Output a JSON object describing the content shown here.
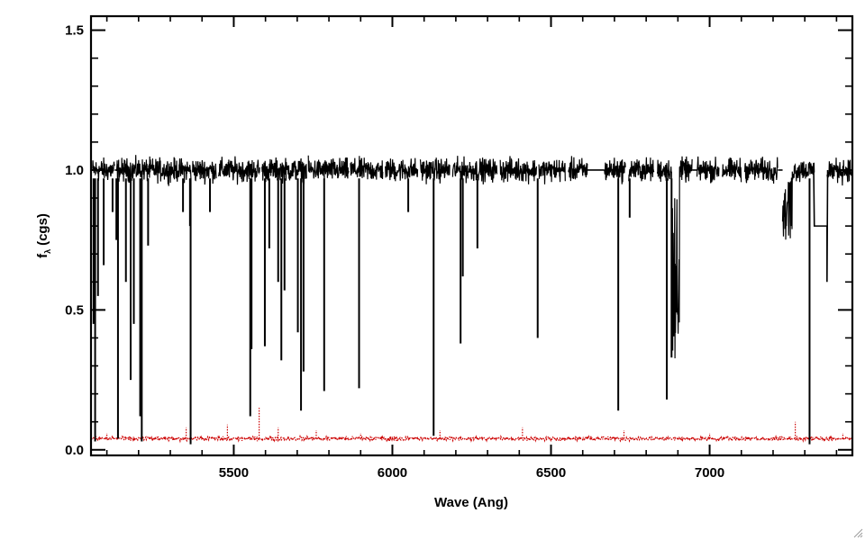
{
  "chart_data": {
    "type": "line",
    "xlabel": "Wave (Ang)",
    "ylabel_main": "f",
    "ylabel_sub": "λ",
    "ylabel_unit": "(cgs)",
    "xlim": [
      5050,
      7450
    ],
    "ylim": [
      -0.02,
      1.55
    ],
    "xticks": [
      5500,
      6000,
      6500,
      7000
    ],
    "xtick_labels": [
      "5500",
      "6000",
      "6500",
      "7000"
    ],
    "yticks": [
      0.0,
      0.5,
      1.0,
      1.5
    ],
    "ytick_labels": [
      "0.0",
      "0.5",
      "1.0",
      "1.5"
    ],
    "grid": false,
    "series": [
      {
        "style": "solid",
        "color": "#000000",
        "continuum": 1.0,
        "noise": 0.035,
        "segments": [
          [
            5055,
            5125
          ],
          [
            5130,
            5365
          ],
          [
            5370,
            5445
          ],
          [
            5452,
            5582
          ],
          [
            5588,
            5730
          ],
          [
            5735,
            5862
          ],
          [
            5868,
            5970
          ],
          [
            5978,
            6080
          ],
          [
            6088,
            6182
          ],
          [
            6190,
            6330
          ],
          [
            6340,
            6455
          ],
          [
            6462,
            6545
          ],
          [
            6555,
            6615
          ],
          [
            6668,
            6735
          ],
          [
            6745,
            6825
          ],
          [
            6835,
            6945
          ],
          [
            6960,
            7030
          ],
          [
            7040,
            7100
          ],
          [
            7110,
            7215
          ],
          [
            7230,
            7330
          ],
          [
            7370,
            7448
          ]
        ],
        "gaps": [
          [
            5125,
            5130
          ],
          [
            6615,
            6668
          ],
          [
            6945,
            6960
          ],
          [
            7215,
            7230
          ]
        ],
        "plateaus": [
          [
            7330,
            7370,
            0.8
          ]
        ],
        "absorption_lines": [
          [
            5058,
            0.45
          ],
          [
            5063,
            0.03
          ],
          [
            5072,
            0.55
          ],
          [
            5090,
            0.66
          ],
          [
            5118,
            0.85
          ],
          [
            5130,
            0.75
          ],
          [
            5135,
            0.04
          ],
          [
            5160,
            0.6
          ],
          [
            5175,
            0.25
          ],
          [
            5185,
            0.45
          ],
          [
            5205,
            0.12
          ],
          [
            5210,
            0.03
          ],
          [
            5230,
            0.73
          ],
          [
            5340,
            0.85
          ],
          [
            5362,
            0.8
          ],
          [
            5364,
            0.02
          ],
          [
            5425,
            0.85
          ],
          [
            5552,
            0.12
          ],
          [
            5556,
            0.36
          ],
          [
            5598,
            0.37
          ],
          [
            5612,
            0.72
          ],
          [
            5640,
            0.6
          ],
          [
            5650,
            0.32
          ],
          [
            5660,
            0.57
          ],
          [
            5702,
            0.42
          ],
          [
            5712,
            0.14
          ],
          [
            5720,
            0.28
          ],
          [
            5785,
            0.21
          ],
          [
            5895,
            0.22
          ],
          [
            6050,
            0.85
          ],
          [
            6130,
            0.05
          ],
          [
            6215,
            0.38
          ],
          [
            6222,
            0.62
          ],
          [
            6268,
            0.72
          ],
          [
            6458,
            0.4
          ],
          [
            6712,
            0.14
          ],
          [
            6748,
            0.83
          ],
          [
            6865,
            0.18
          ],
          [
            6880,
            0.33
          ],
          [
            7315,
            0.02
          ]
        ],
        "broad_troughs": [
          [
            6880,
            6905,
            0.3
          ],
          [
            7230,
            7260,
            0.75
          ]
        ]
      },
      {
        "style": "dotted",
        "color": "#cc0000",
        "baseline": 0.04,
        "noise": 0.006,
        "spikes": [
          [
            5100,
            0.06
          ],
          [
            5350,
            0.08
          ],
          [
            5480,
            0.09
          ],
          [
            5580,
            0.15
          ],
          [
            5640,
            0.08
          ],
          [
            5760,
            0.07
          ],
          [
            5900,
            0.06
          ],
          [
            6150,
            0.07
          ],
          [
            6410,
            0.08
          ],
          [
            6730,
            0.07
          ],
          [
            7000,
            0.06
          ],
          [
            7270,
            0.1
          ],
          [
            7420,
            0.06
          ]
        ]
      }
    ]
  }
}
